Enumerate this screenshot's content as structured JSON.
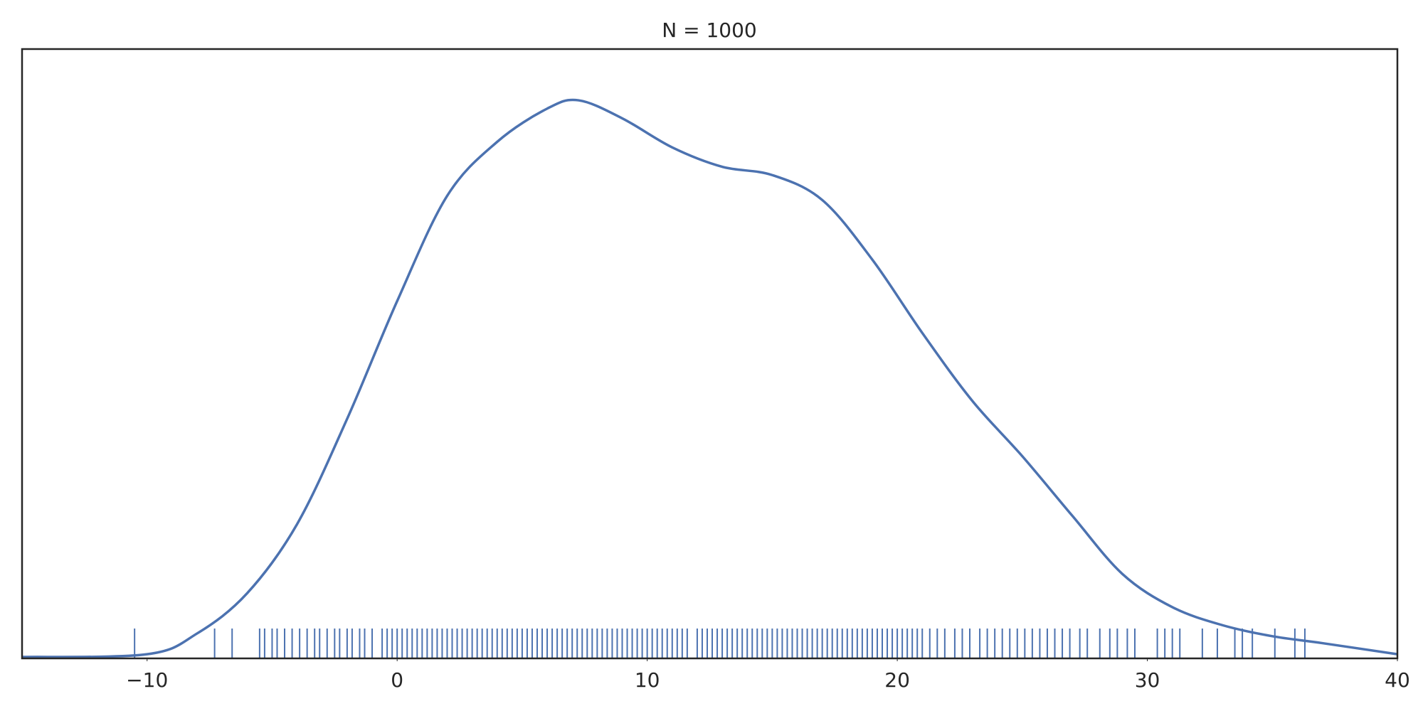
{
  "chart_data": {
    "type": "line",
    "title": "N = 1000",
    "xlim": [
      -15,
      40
    ],
    "xticks": [
      {
        "value": -10,
        "label": "−10"
      },
      0,
      10,
      20,
      30,
      40
    ],
    "ylim": [
      0,
      0.044
    ],
    "series": [
      {
        "color": "#4c72b0",
        "x": [
          -15,
          -10,
          -8,
          -6,
          -4,
          -2,
          0,
          2,
          4,
          6,
          7.25,
          9,
          11,
          13,
          15,
          17,
          19,
          21,
          23,
          25,
          27,
          29,
          31,
          33,
          35,
          37,
          40
        ],
        "values": [
          0.0001,
          0.0003,
          0.0018,
          0.0047,
          0.0097,
          0.0173,
          0.0258,
          0.0334,
          0.0373,
          0.0397,
          0.0403,
          0.039,
          0.0369,
          0.0355,
          0.0349,
          0.0331,
          0.0288,
          0.0235,
          0.0186,
          0.0146,
          0.0103,
          0.0061,
          0.0037,
          0.0024,
          0.0016,
          0.0011,
          0.0003
        ]
      }
    ],
    "rug": {
      "color": "#4c72b0",
      "values": [
        -10.5,
        -7.3,
        -6.6,
        -5.5,
        -5.3,
        -5.0,
        -4.8,
        -4.5,
        -4.2,
        -3.9,
        -3.6,
        -3.3,
        -3.1,
        -2.8,
        -2.5,
        -2.3,
        -2.0,
        -1.8,
        -1.5,
        -1.3,
        -1.0,
        -0.6,
        -0.4,
        -0.2,
        0,
        0.2,
        0.4,
        0.6,
        0.8,
        1.0,
        1.2,
        1.4,
        1.6,
        1.8,
        2.0,
        2.2,
        2.4,
        2.6,
        2.8,
        3.0,
        3.2,
        3.4,
        3.6,
        3.8,
        4.0,
        4.2,
        4.4,
        4.6,
        4.8,
        5.0,
        5.2,
        5.4,
        5.6,
        5.8,
        6.0,
        6.2,
        6.4,
        6.6,
        6.8,
        7.0,
        7.2,
        7.4,
        7.6,
        7.8,
        8.0,
        8.2,
        8.4,
        8.6,
        8.8,
        9.0,
        9.2,
        9.4,
        9.6,
        9.8,
        10.0,
        10.2,
        10.4,
        10.6,
        10.8,
        11.0,
        11.2,
        11.4,
        11.6,
        12.0,
        12.2,
        12.4,
        12.6,
        12.8,
        13.0,
        13.2,
        13.4,
        13.6,
        13.8,
        14.0,
        14.2,
        14.4,
        14.6,
        14.8,
        15.0,
        15.2,
        15.4,
        15.6,
        15.8,
        16.0,
        16.2,
        16.4,
        16.6,
        16.8,
        17.0,
        17.2,
        17.4,
        17.6,
        17.8,
        18.0,
        18.2,
        18.4,
        18.6,
        18.8,
        19.0,
        19.2,
        19.4,
        19.6,
        19.8,
        20.0,
        20.2,
        20.4,
        20.6,
        20.8,
        21.0,
        21.3,
        21.6,
        21.9,
        22.3,
        22.6,
        22.9,
        23.3,
        23.6,
        23.9,
        24.2,
        24.5,
        24.8,
        25.1,
        25.4,
        25.7,
        26.0,
        26.3,
        26.6,
        26.9,
        27.3,
        27.6,
        28.1,
        28.5,
        28.8,
        29.2,
        29.5,
        30.4,
        30.7,
        31.0,
        31.3,
        32.2,
        32.8,
        33.5,
        33.8,
        34.2,
        35.1,
        35.9,
        36.3
      ]
    }
  }
}
